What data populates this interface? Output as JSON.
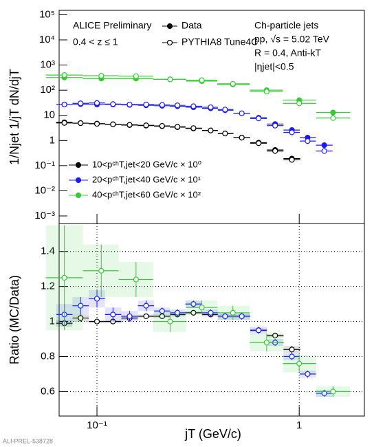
{
  "chart_data": [
    {
      "type": "scatter",
      "y_label": "1/Njet 1/jT dN/djT",
      "annotations": [
        "ALICE Preliminary",
        "0.4 < z ≤ 1",
        "Ch-particle jets",
        "pp, √s = 5.02 TeV",
        "R = 0.4, Anti-kT",
        "|ηjet|<0.5"
      ],
      "marker_legend": [
        "Data",
        "PYTHIA8 Tune4C"
      ],
      "xlog": true,
      "ylog": true,
      "xlim": [
        0.065,
        2.1
      ],
      "ylim": [
        0.0005,
        150000
      ],
      "yticks": [
        {
          "value": 0.001,
          "label": "10⁻³"
        },
        {
          "value": 0.01,
          "label": "10⁻²"
        },
        {
          "value": 0.1,
          "label": "10⁻¹"
        },
        1,
        10,
        {
          "value": 100,
          "label": "10²"
        },
        {
          "value": 1000,
          "label": "10³"
        },
        {
          "value": 10000,
          "label": "10⁴"
        },
        {
          "value": 100000,
          "label": "10⁵"
        }
      ],
      "series": [
        {
          "name": "10<pᶜʰT,jet<20 GeV/c × 10⁰",
          "color": "#000000",
          "x": [
            0.069,
            0.083,
            0.1,
            0.12,
            0.145,
            0.175,
            0.21,
            0.25,
            0.3,
            0.365,
            0.43,
            0.52,
            0.63,
            0.76,
            0.92
          ],
          "values": [
            5.3,
            4.9,
            4.7,
            4.4,
            4.1,
            3.9,
            3.7,
            3.4,
            3.0,
            2.5,
            1.9,
            1.3,
            0.82,
            0.42,
            0.19
          ],
          "mc_values": [
            5.0,
            4.9,
            4.6,
            4.4,
            4.2,
            4.0,
            3.8,
            3.5,
            3.1,
            2.5,
            1.9,
            1.3,
            0.78,
            0.38,
            0.17
          ]
        },
        {
          "name": "20<pᶜʰT,jet<40 GeV/c × 10¹",
          "color": "#1a1aff",
          "x": [
            0.069,
            0.083,
            0.1,
            0.12,
            0.145,
            0.175,
            0.21,
            0.25,
            0.3,
            0.365,
            0.43,
            0.52,
            0.63,
            0.76,
            0.92,
            1.1,
            1.33
          ],
          "values": [
            27,
            28,
            27,
            27,
            26,
            25,
            24,
            23,
            21,
            19,
            16,
            12,
            8,
            4.5,
            2.6,
            1.3,
            0.65
          ],
          "mc_values": [
            27,
            30,
            31,
            28,
            27,
            27,
            26,
            25,
            23,
            21,
            17,
            12,
            7.5,
            3.9,
            2.1,
            0.95,
            0.38
          ]
        },
        {
          "name": "40<pᶜʰT,jet<60 GeV/c × 10²",
          "color": "#33cc33",
          "x": [
            0.069,
            0.105,
            0.156,
            0.23,
            0.33,
            0.47,
            0.69,
            1.0,
            1.47
          ],
          "values": [
            320,
            290,
            290,
            270,
            230,
            170,
            100,
            40,
            13
          ],
          "mc_values": [
            400,
            375,
            360,
            270,
            250,
            180,
            88,
            30,
            7.8
          ]
        }
      ]
    },
    {
      "type": "scatter",
      "x_label": "jT (GeV/c)",
      "y_label": "Ratio (MC/Data)",
      "footer": "ALI-PREL-538728",
      "xlog": true,
      "grid": true,
      "xlim": [
        0.065,
        2.1
      ],
      "ylim": [
        0.46,
        1.56
      ],
      "xticks": [
        {
          "value": 0.1,
          "label": "10⁻¹"
        },
        1
      ],
      "yticks": [
        0.6,
        0.8,
        1,
        1.2,
        1.4
      ],
      "series": [
        {
          "color": "#000000",
          "x": [
            0.069,
            0.083,
            0.1,
            0.12,
            0.145,
            0.175,
            0.21,
            0.25,
            0.3,
            0.365,
            0.43,
            0.52,
            0.63,
            0.76,
            0.92
          ],
          "values": [
            0.99,
            1.02,
            1.0,
            1.0,
            1.02,
            1.03,
            1.03,
            1.04,
            1.05,
            1.04,
            1.03,
            1.03,
            0.95,
            0.92,
            0.84
          ],
          "errors": [
            0.02,
            0.02,
            0.01,
            0.01,
            0.01,
            0.01,
            0.01,
            0.01,
            0.01,
            0.01,
            0.01,
            0.01,
            0.01,
            0.01,
            0.02
          ]
        },
        {
          "color": "#1a1aff",
          "x": [
            0.069,
            0.083,
            0.1,
            0.12,
            0.145,
            0.175,
            0.21,
            0.25,
            0.3,
            0.365,
            0.43,
            0.52,
            0.63,
            0.76,
            0.92,
            1.1,
            1.33
          ],
          "values": [
            1.04,
            1.09,
            1.13,
            1.04,
            1.03,
            1.09,
            1.06,
            1.05,
            1.1,
            1.05,
            1.03,
            1.03,
            0.95,
            0.88,
            0.8,
            0.7,
            0.59
          ],
          "errors": [
            0.06,
            0.05,
            0.05,
            0.04,
            0.03,
            0.03,
            0.02,
            0.02,
            0.02,
            0.02,
            0.02,
            0.02,
            0.02,
            0.02,
            0.02,
            0.02,
            0.02
          ]
        },
        {
          "color": "#33cc33",
          "x": [
            0.069,
            0.105,
            0.156,
            0.23,
            0.33,
            0.47,
            0.69,
            1.0,
            1.47
          ],
          "values": [
            1.25,
            1.29,
            1.24,
            1.0,
            1.08,
            1.05,
            0.88,
            0.76,
            0.6
          ],
          "errors": [
            0.3,
            0.15,
            0.1,
            0.06,
            0.04,
            0.04,
            0.05,
            0.05,
            0.03
          ]
        }
      ]
    }
  ]
}
